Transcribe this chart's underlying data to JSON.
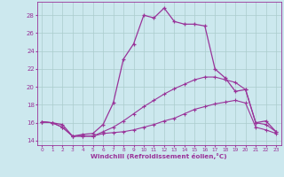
{
  "xlabel": "Windchill (Refroidissement éolien,°C)",
  "background_color": "#cce8ee",
  "grid_color": "#aacccc",
  "line_color": "#993399",
  "xlim": [
    -0.5,
    23.5
  ],
  "ylim": [
    13.5,
    29.5
  ],
  "yticks": [
    14,
    16,
    18,
    20,
    22,
    24,
    26,
    28
  ],
  "xticks": [
    0,
    1,
    2,
    3,
    4,
    5,
    6,
    7,
    8,
    9,
    10,
    11,
    12,
    13,
    14,
    15,
    16,
    17,
    18,
    19,
    20,
    21,
    22,
    23
  ],
  "series1_x": [
    0,
    1,
    2,
    3,
    4,
    5,
    6,
    7,
    8,
    9,
    10,
    11,
    12,
    13,
    14,
    15,
    16,
    17,
    18,
    19,
    20,
    21,
    22,
    23
  ],
  "series1_y": [
    16.1,
    16.0,
    15.8,
    14.5,
    14.7,
    14.8,
    15.8,
    18.2,
    23.1,
    24.8,
    28.0,
    27.7,
    28.8,
    27.3,
    27.0,
    27.0,
    26.8,
    22.0,
    21.0,
    19.5,
    19.7,
    16.0,
    16.2,
    15.0
  ],
  "series2_x": [
    0,
    1,
    2,
    3,
    4,
    5,
    6,
    7,
    8,
    9,
    10,
    11,
    12,
    13,
    14,
    15,
    16,
    17,
    18,
    19,
    20,
    21,
    22,
    23
  ],
  "series2_y": [
    16.1,
    16.0,
    15.5,
    14.5,
    14.5,
    14.5,
    15.0,
    15.5,
    16.2,
    17.0,
    17.8,
    18.5,
    19.2,
    19.8,
    20.3,
    20.8,
    21.1,
    21.1,
    20.8,
    20.5,
    19.7,
    16.0,
    15.8,
    15.0
  ],
  "series3_x": [
    0,
    1,
    2,
    3,
    4,
    5,
    6,
    7,
    8,
    9,
    10,
    11,
    12,
    13,
    14,
    15,
    16,
    17,
    18,
    19,
    20,
    21,
    22,
    23
  ],
  "series3_y": [
    16.1,
    16.0,
    15.5,
    14.5,
    14.5,
    14.5,
    14.8,
    14.9,
    15.0,
    15.2,
    15.5,
    15.8,
    16.2,
    16.5,
    17.0,
    17.5,
    17.8,
    18.1,
    18.3,
    18.5,
    18.2,
    15.5,
    15.2,
    14.8
  ]
}
